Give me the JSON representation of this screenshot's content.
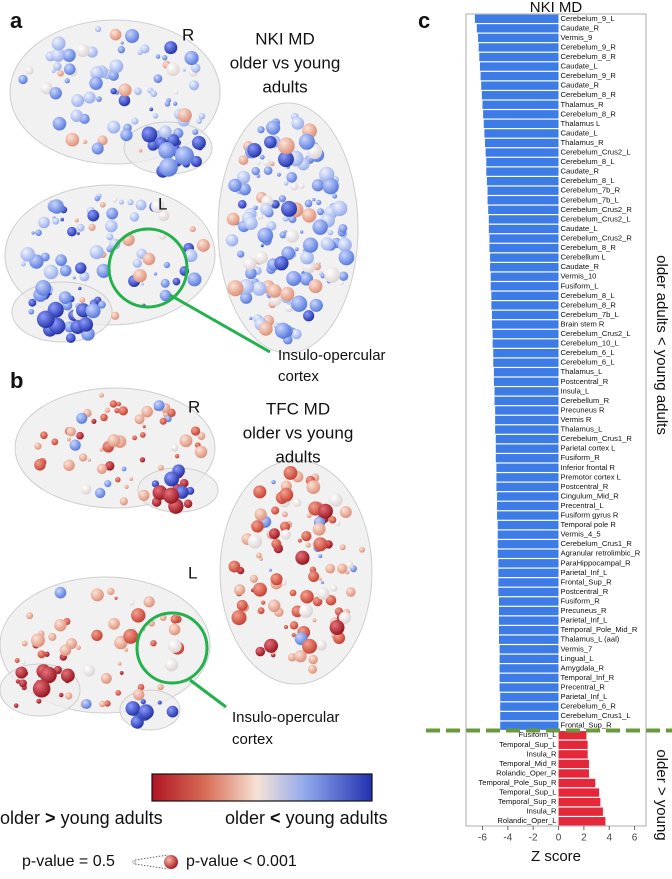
{
  "figure": {
    "panel_labels": [
      "a",
      "b",
      "c"
    ],
    "hemisphere_labels": [
      "R",
      "L",
      "R",
      "L"
    ],
    "panel_a": {
      "title": "NKI MD",
      "subtitle_lines": [
        "older vs young",
        "adults"
      ],
      "callout_lines": [
        "Insulo-opercular",
        "cortex"
      ]
    },
    "panel_b": {
      "title": "TFC MD",
      "subtitle_lines": [
        "older vs young",
        "adults"
      ],
      "callout_lines": [
        "Insulo-opercular",
        "cortex"
      ]
    },
    "colorbar": {
      "left": {
        "group": "older",
        "sign": ">",
        "rest": "young adults"
      },
      "right": {
        "group": "older",
        "sign": "<",
        "rest": "young adults"
      }
    },
    "size_legend": {
      "small": "p-value = 0.5",
      "large": "p-value < 0.001"
    },
    "side_labels": [
      "older adults < young adults",
      "older > young"
    ]
  },
  "chart_data": {
    "type": "barh",
    "title": "NKI MD",
    "x_label": "Z score",
    "categories": [
      "Cerebelum_9_L",
      "Caudate_R",
      "Vermis_9",
      "Cerebelum_9_R",
      "Cerebelum_8_R",
      "Caudate_L",
      "Cerebelum_9_R",
      "Caudate_R",
      "Cerebelum_8_R",
      "Thalamus_R",
      "Cerebelum_8_R",
      "Thalamus L",
      "Caudate_L",
      "Thalamus_R",
      "Cerebelum_Crus2_L",
      "Cerebelum_8_L",
      "Caudate_R",
      "Cerebelum_8_L",
      "Cerebelum_7b_R",
      "Cerebelum_7b_L",
      "Cerebelum_Crus2_R",
      "Cerebelum_Crus2_L",
      "Caudate_L",
      "Cerebelum_Crus2_R",
      "Cerebelum_8_R",
      "Cerebellum L",
      "Caudate_R",
      "Vermis_10",
      "Fusiform_L",
      "Cerebelum_8_L",
      "Cerebelum_8_R",
      "Cerebelum_7b_L",
      "Brain stem R",
      "Cerebelum_Crus2_L",
      "Cerebelum_10_L",
      "Cerebelum_6_L",
      "Cerebelum_6_L",
      "Thalamus_L",
      "Postcentral_R",
      "Insula_L",
      "Cerebellum_R",
      "Precuneus R",
      "Vermis R",
      "Thalamus_L",
      "Cerebelum_Crus1_R",
      "Parietal cortex L",
      "Fusiform_R",
      "Inferior frontal R",
      "Premotor cortex L",
      "Postcentral_R",
      "Cingulum_Mid_R",
      "Precentral_L",
      "Fusiform gyrus R",
      "Temporal pole R",
      "Vermis_4_5",
      "Cerebelum_Crus1_R",
      "Agranular retrolimbic_R",
      "ParaHippocampal_R",
      "Parietal_Inf_L",
      "Frontal_Sup_R",
      "Postcentral_R",
      "Fusiform_R",
      "Precuneus_R",
      "Parietal_Inf_L",
      "Temporal_Pole_Mid_R",
      "Thalamus_L (aal)",
      "Vermis_7",
      "Lingual_L",
      "Amygdala_R",
      "Temporal_Inf_R",
      "Precentral_R",
      "Parietal_Inf_L",
      "Cerebelum_6_R",
      "Cerebelum_Crus1_L",
      "Frontal_Sup_R",
      "Fusiform_L",
      "Temporal_Sup_L",
      "Insula_R",
      "Temporal_Mid_R",
      "Rolandic_Oper_R",
      "Temporal_Pole_Sup_R",
      "Temporal_Sup_L",
      "Temporal_Sup_R",
      "Insula_R",
      "Rolandic_Oper_L"
    ],
    "values": [
      -6.6,
      -6.45,
      -6.35,
      -6.3,
      -6.25,
      -6.2,
      -6.15,
      -6.1,
      -6.05,
      -6.0,
      -5.95,
      -5.9,
      -5.85,
      -5.8,
      -5.75,
      -5.7,
      -5.7,
      -5.65,
      -5.6,
      -5.6,
      -5.55,
      -5.5,
      -5.5,
      -5.45,
      -5.45,
      -5.4,
      -5.4,
      -5.35,
      -5.35,
      -5.3,
      -5.3,
      -5.25,
      -5.25,
      -5.2,
      -5.2,
      -5.15,
      -5.15,
      -5.1,
      -5.1,
      -5.05,
      -5.05,
      -5.0,
      -5.0,
      -5.0,
      -4.95,
      -4.95,
      -4.95,
      -4.9,
      -4.9,
      -4.9,
      -4.85,
      -4.85,
      -4.85,
      -4.8,
      -4.8,
      -4.8,
      -4.8,
      -4.75,
      -4.75,
      -4.75,
      -4.75,
      -4.7,
      -4.7,
      -4.7,
      -4.7,
      -4.7,
      -4.65,
      -4.65,
      -4.65,
      -4.65,
      -4.65,
      -4.6,
      -4.6,
      -4.6,
      -4.6,
      2.2,
      2.3,
      2.3,
      2.4,
      2.4,
      2.9,
      3.2,
      3.3,
      3.5,
      3.7
    ],
    "colors": {
      "negative": "#3d7be6",
      "positive": "#e5273a"
    },
    "divider_color": "#6a9a3c",
    "xlim": [
      -7.3,
      6.9
    ],
    "xticks": [
      -6,
      -4,
      -2,
      0,
      2,
      4,
      6
    ],
    "grid": false
  }
}
